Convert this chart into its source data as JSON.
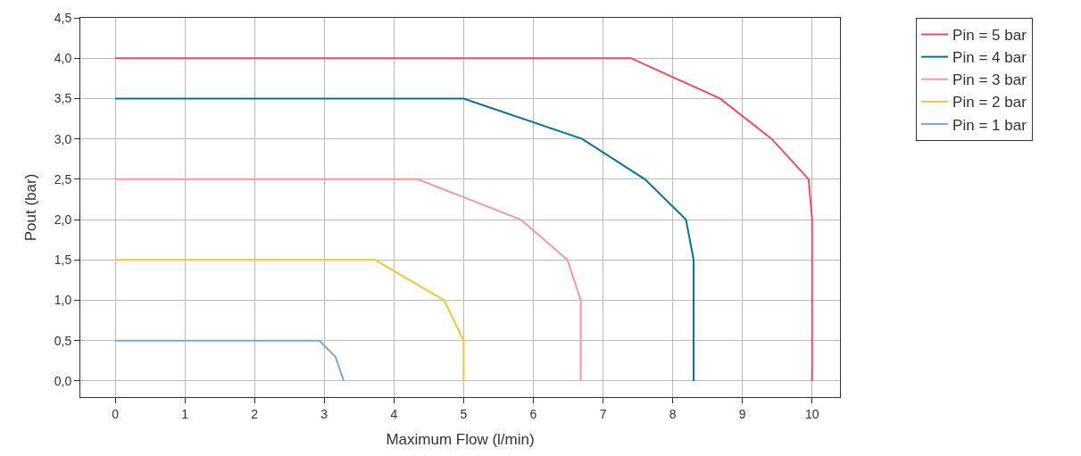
{
  "chart_data": {
    "type": "line",
    "xlabel": "Maximum Flow (l/min)",
    "ylabel": "Pout (bar)",
    "xlim": [
      -0.5,
      10.4
    ],
    "ylim": [
      -0.2,
      4.5
    ],
    "xticks": [
      0,
      1,
      2,
      3,
      4,
      5,
      6,
      7,
      8,
      9,
      10
    ],
    "yticks": [
      {
        "value": 0,
        "label": "0,0"
      },
      {
        "value": 0.5,
        "label": "0,5"
      },
      {
        "value": 1,
        "label": "1,0"
      },
      {
        "value": 1.5,
        "label": "1,5"
      },
      {
        "value": 2,
        "label": "2,0"
      },
      {
        "value": 2.5,
        "label": "2,5"
      },
      {
        "value": 3,
        "label": "3,0"
      },
      {
        "value": 3.5,
        "label": "3,5"
      },
      {
        "value": 4,
        "label": "4,0"
      },
      {
        "value": 4.5,
        "label": "4,5"
      }
    ],
    "grid": true,
    "legend": "top right",
    "marker": "none",
    "line_style": "solid",
    "series": [
      {
        "name": "Pin = 5 bar",
        "color": "#e05263",
        "x": [
          0,
          7.4,
          8.68,
          9.42,
          9.95,
          10,
          10
        ],
        "values": [
          4,
          4,
          3.5,
          3,
          2.5,
          2,
          0
        ]
      },
      {
        "name": "Pin = 4 bar",
        "color": "#0e6e94",
        "x": [
          0,
          5,
          6.7,
          7.6,
          8.19,
          8.3,
          8.3
        ],
        "values": [
          3.5,
          3.5,
          3,
          2.5,
          2,
          1.5,
          0
        ]
      },
      {
        "name": "Pin = 3 bar",
        "color": "#f09a9a",
        "x": [
          0,
          4.34,
          5.82,
          6.49,
          6.68,
          6.68
        ],
        "values": [
          2.5,
          2.5,
          2,
          1.5,
          1,
          0
        ]
      },
      {
        "name": "Pin = 2 bar",
        "color": "#f5c23c",
        "x": [
          0,
          3.73,
          4.72,
          5,
          5
        ],
        "values": [
          1.5,
          1.5,
          1,
          0.5,
          0
        ]
      },
      {
        "name": "Pin = 1 bar",
        "color": "#7aabc8",
        "x": [
          0,
          2.93,
          3.16,
          3.28
        ],
        "values": [
          0.5,
          0.5,
          0.3,
          0
        ]
      }
    ]
  }
}
